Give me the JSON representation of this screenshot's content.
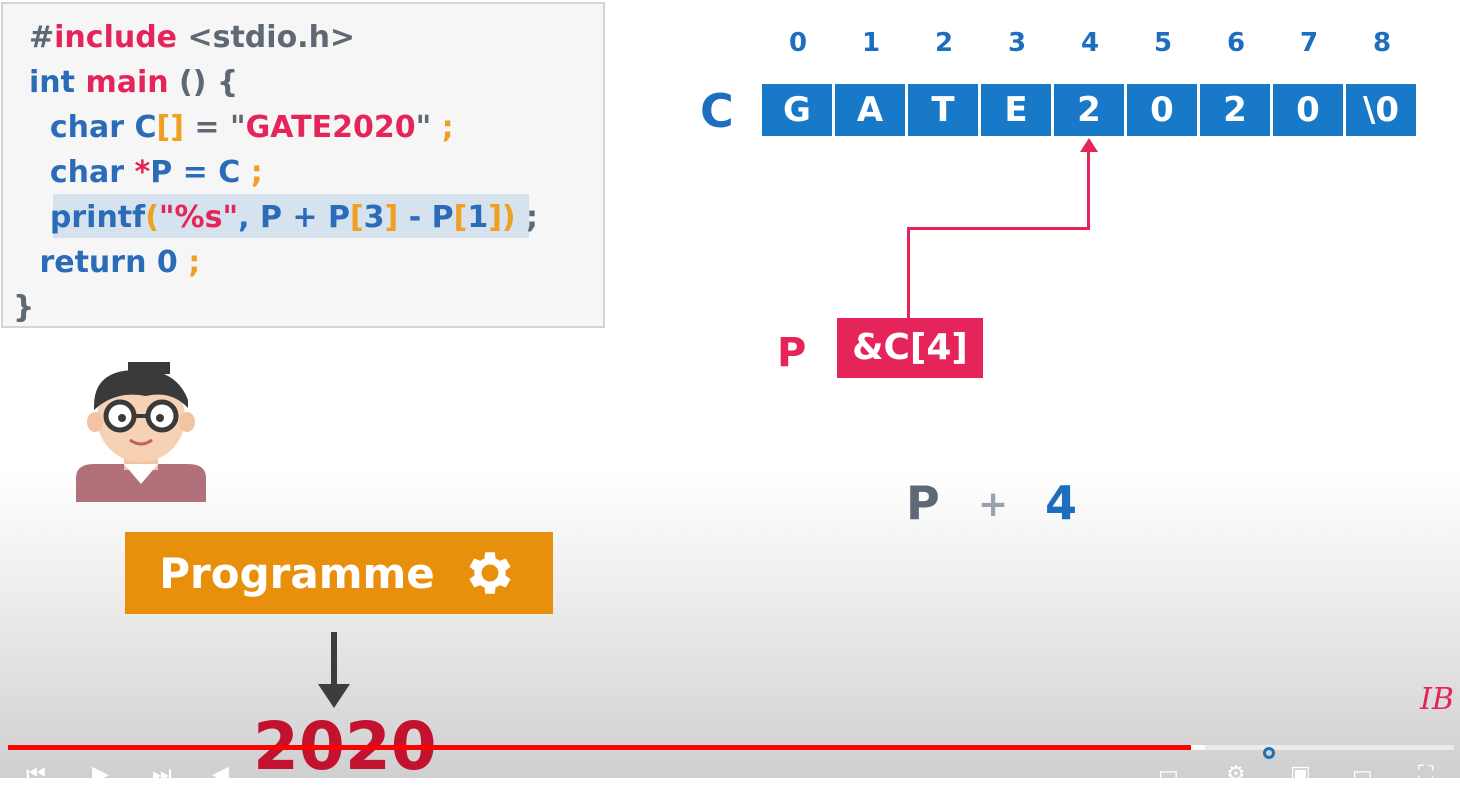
{
  "code": {
    "lines": [
      [
        {
          "t": "#",
          "c": "c-gray"
        },
        {
          "t": "include",
          "c": "c-red"
        },
        {
          "t": " <stdio.h>",
          "c": "c-gray"
        }
      ],
      [
        {
          "t": "int ",
          "c": "c-blue"
        },
        {
          "t": "main",
          "c": "c-red"
        },
        {
          "t": " () {",
          "c": "c-gray"
        }
      ],
      [
        {
          "t": "  char ",
          "c": "c-blue"
        },
        {
          "t": "C",
          "c": "c-blue"
        },
        {
          "t": "[]",
          "c": "c-orange"
        },
        {
          "t": " = \"",
          "c": "c-gray"
        },
        {
          "t": "GATE2020",
          "c": "c-red"
        },
        {
          "t": "\" ",
          "c": "c-gray"
        },
        {
          "t": ";",
          "c": "c-orange"
        }
      ],
      [
        {
          "t": "  char ",
          "c": "c-blue"
        },
        {
          "t": "*",
          "c": "c-red"
        },
        {
          "t": "P = C ",
          "c": "c-blue"
        },
        {
          "t": ";",
          "c": "c-orange"
        }
      ],
      [
        {
          "t": "  printf",
          "c": "c-blue"
        },
        {
          "t": "(",
          "c": "c-orange"
        },
        {
          "t": "\"%s\"",
          "c": "c-red"
        },
        {
          "t": ", P + P",
          "c": "c-blue"
        },
        {
          "t": "[",
          "c": "c-orange"
        },
        {
          "t": "3",
          "c": "c-blue"
        },
        {
          "t": "]",
          "c": "c-orange"
        },
        {
          "t": " - P",
          "c": "c-blue"
        },
        {
          "t": "[",
          "c": "c-orange"
        },
        {
          "t": "1",
          "c": "c-blue"
        },
        {
          "t": "])",
          "c": "c-orange"
        },
        {
          "t": " ;",
          "c": "c-gray"
        }
      ],
      [
        {
          "t": " return ",
          "c": "c-blue"
        },
        {
          "t": "0",
          "c": "c-blue"
        },
        {
          "t": " ;",
          "c": "c-orange"
        }
      ],
      [
        {
          "t": "}",
          "c": "c-gray"
        }
      ]
    ]
  },
  "array": {
    "name": "C",
    "indices": [
      "0",
      "1",
      "2",
      "3",
      "4",
      "5",
      "6",
      "7",
      "8"
    ],
    "cells": [
      "G",
      "A",
      "T",
      "E",
      "2",
      "0",
      "2",
      "0",
      "\\0"
    ]
  },
  "pointer": {
    "name": "P",
    "value": "&C[4]"
  },
  "expression": {
    "left": "P",
    "op": "+",
    "right": "4"
  },
  "program_button": {
    "label": "Programme",
    "icon": "gear-icon"
  },
  "output": {
    "value": "2020"
  },
  "player": {
    "progress_fraction": 0.818,
    "watermark": "IB"
  }
}
